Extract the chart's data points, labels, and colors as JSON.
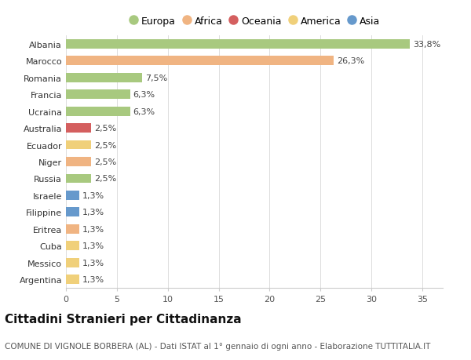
{
  "countries": [
    "Albania",
    "Marocco",
    "Romania",
    "Francia",
    "Ucraina",
    "Australia",
    "Ecuador",
    "Niger",
    "Russia",
    "Israele",
    "Filippine",
    "Eritrea",
    "Cuba",
    "Messico",
    "Argentina"
  ],
  "values": [
    33.8,
    26.3,
    7.5,
    6.3,
    6.3,
    2.5,
    2.5,
    2.5,
    2.5,
    1.3,
    1.3,
    1.3,
    1.3,
    1.3,
    1.3
  ],
  "continents": [
    "Europa",
    "Africa",
    "Europa",
    "Europa",
    "Europa",
    "Oceania",
    "America",
    "Africa",
    "Europa",
    "Asia",
    "Asia",
    "Africa",
    "America",
    "America",
    "America"
  ],
  "continent_colors": {
    "Europa": "#a8c97f",
    "Africa": "#f0b482",
    "Oceania": "#d45f5f",
    "America": "#f0d07a",
    "Asia": "#6699cc"
  },
  "legend_order": [
    "Europa",
    "Africa",
    "Oceania",
    "America",
    "Asia"
  ],
  "title": "Cittadini Stranieri per Cittadinanza",
  "subtitle": "COMUNE DI VIGNOLE BORBERA (AL) - Dati ISTAT al 1° gennaio di ogni anno - Elaborazione TUTTITALIA.IT",
  "xlim": [
    0,
    37
  ],
  "xticks": [
    0,
    5,
    10,
    15,
    20,
    25,
    30,
    35
  ],
  "background_color": "#ffffff",
  "bar_height": 0.55,
  "title_fontsize": 11,
  "subtitle_fontsize": 7.5,
  "label_fontsize": 8,
  "tick_fontsize": 8,
  "legend_fontsize": 9
}
